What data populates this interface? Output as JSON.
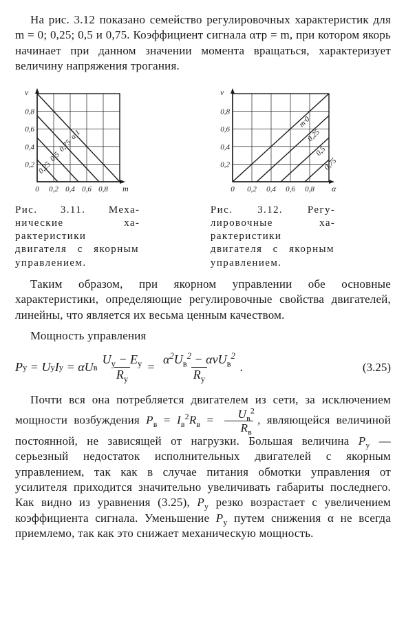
{
  "para1": "На рис. 3.12 показано семейство регулировочных ха­рактеристик для m = 0; 0,25; 0,5 и 0,75. Коэффициент сиг­нала αтр = m, при котором якорь начинает при данном значении момента вращаться, характеризует величину напряжения трогания.",
  "fig311": {
    "caption": "Рис. 3.11. Меха­нические ха­рактеристики двигателя с якорным управ­лением.",
    "type": "line",
    "xlabel": "m",
    "ylabel": "ν",
    "xticks": [
      0,
      0.2,
      0.4,
      0.6,
      0.8
    ],
    "yticks": [
      0.2,
      0.4,
      0.6,
      0.8
    ],
    "tick_labels_x": [
      "0",
      "0,2",
      "0,4",
      "0,6",
      "0,8"
    ],
    "tick_labels_y": [
      "0,2",
      "0,4",
      "0,6",
      "0,8"
    ],
    "xlim": [
      0,
      1.0
    ],
    "ylim": [
      0,
      1.0
    ],
    "lines": [
      {
        "label": "α·1",
        "p1": [
          0,
          1.0
        ],
        "p2": [
          1.0,
          0
        ]
      },
      {
        "label": "0,75",
        "p1": [
          0,
          0.75
        ],
        "p2": [
          0.75,
          0
        ]
      },
      {
        "label": "0,5",
        "p1": [
          0,
          0.5
        ],
        "p2": [
          0.5,
          0
        ]
      },
      {
        "label": "0,25",
        "p1": [
          0,
          0.25
        ],
        "p2": [
          0.25,
          0
        ]
      }
    ],
    "line_color": "#1a1a1a",
    "grid_color": "#1a1a1a",
    "background_color": "#ffffff",
    "font_size": 11,
    "line_width": 1.4
  },
  "fig312": {
    "caption": "Рис. 3.12. Регу­лировочные ха­рактеристики двигателя с якорным управ­лением.",
    "type": "line",
    "xlabel": "α",
    "ylabel": "ν",
    "xticks": [
      0,
      0.2,
      0.4,
      0.6,
      0.8
    ],
    "yticks": [
      0.2,
      0.4,
      0.6,
      0.8
    ],
    "tick_labels_x": [
      "0",
      "0,2",
      "0,4",
      "0,6",
      "0,8"
    ],
    "tick_labels_y": [
      "0,2",
      "0,4",
      "0,6",
      "0,8"
    ],
    "xlim": [
      0,
      1.0
    ],
    "ylim": [
      0,
      1.0
    ],
    "lines": [
      {
        "label": "m·0",
        "p1": [
          0.0,
          0
        ],
        "p2": [
          1.0,
          1.0
        ]
      },
      {
        "label": "0,25",
        "p1": [
          0.25,
          0
        ],
        "p2": [
          1.0,
          0.75
        ]
      },
      {
        "label": "0,5",
        "p1": [
          0.5,
          0
        ],
        "p2": [
          1.0,
          0.5
        ]
      },
      {
        "label": "0,75",
        "p1": [
          0.75,
          0
        ],
        "p2": [
          1.0,
          0.25
        ]
      }
    ],
    "line_color": "#1a1a1a",
    "grid_color": "#1a1a1a",
    "background_color": "#ffffff",
    "font_size": 11,
    "line_width": 1.4
  },
  "para2": "Таким образом, при якорном управлении обе основные характеристики, определяющие регулировочные свойства двигателей, линейны, что является их весьма ценным ка­чеством.",
  "para3_lead": "Мощность управления",
  "equation": {
    "lhs": "P_y = U_y I_y = α U_в",
    "frac1_num": "U_y − E_y",
    "frac1_den": "R_y",
    "frac2_num": "α^2 U_в^2 − αν U_в^2",
    "frac2_den": "R_y",
    "number": "(3.25)"
  },
  "para4_a": "Почти вся она потребляется двигателем из сети, за исключением мощности возбуждения ",
  "para4_b": ", являющейся величиной постоянной, не зависящей от на­грузки. Большая величина ",
  "para4_c": " — серьезный недостаток исполнительных двигателей с якорным управлением, так как в случае питания обмотки управления от усилителя приходится значительно увеличивать габариты послед­него. Как видно из уравнения (3.25), ",
  "para4_d": " резко возрастает с увеличением коэффициента сигнала. Уменьшение ",
  "para4_e": " путем снижения α не всегда приемлемо, так как это сни­жает механическую мощность.",
  "syms": {
    "Pv": "P_в",
    "Iv": "I_в",
    "Rv": "R_в",
    "Uv": "U_в",
    "Py": "P_y"
  }
}
